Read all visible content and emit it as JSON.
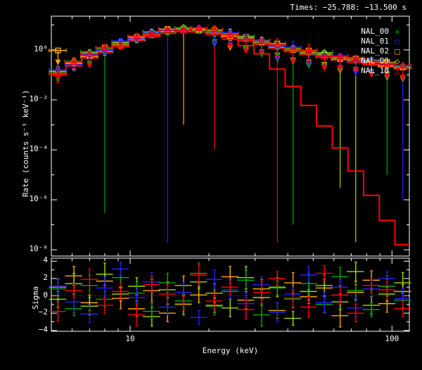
{
  "window": {
    "title": "Times: −25.788: −13.500 s"
  },
  "colors": {
    "background": "#000000",
    "frame": "#ffffff",
    "text": "#ffffff",
    "model": "#ff0000",
    "zero_line": "#ff0000",
    "nal00": "#00aa00",
    "nal01": "#2222ff",
    "nal02": "#ffaa00",
    "nal09": "#9fdd00",
    "nal10": "#ff0000"
  },
  "legend": {
    "items": [
      {
        "label": "NAL_00",
        "glyph": "+",
        "symbol": "plus",
        "color": "#00aa00"
      },
      {
        "label": "NAL_01",
        "glyph": "○",
        "symbol": "circle",
        "color": "#2222ff"
      },
      {
        "label": "NAL_02",
        "glyph": "□",
        "symbol": "square",
        "color": "#ffaa00"
      },
      {
        "label": "NAL_09",
        "glyph": "◇",
        "symbol": "diamond",
        "color": "#9fdd00"
      },
      {
        "label": "NAL_10",
        "glyph": "△",
        "symbol": "triangle",
        "color": "#ff0000"
      }
    ]
  },
  "chart_data": [
    {
      "type": "scatter",
      "subtype": "count-spectrum-with-model-histograms",
      "title": "Times: −25.788: −13.500 s",
      "xlabel": "Energy (keV)",
      "ylabel": "Rate (counts s⁻¹ keV⁻¹)",
      "xscale": "log",
      "yscale": "log",
      "xlim": [
        5.0,
        116.5
      ],
      "ylim": [
        5.6e-09,
        22.4
      ],
      "x_major_ticks": [
        {
          "value": 10,
          "label": "10"
        },
        {
          "value": 100,
          "label": "100"
        }
      ],
      "x_minor_ticks": [
        6,
        7,
        8,
        9,
        20,
        30,
        40,
        50,
        60,
        70,
        80,
        90
      ],
      "y_major_tick_exps": [
        0,
        -2,
        -4,
        -6,
        -8
      ],
      "y_major_tick_labels": [
        "10⁰",
        "10⁻²",
        "10⁻⁴",
        "10⁻⁶",
        "10⁻⁸"
      ],
      "y_minor_tick_exps": [
        1,
        -1,
        -3,
        -5,
        -7
      ],
      "x": [
        5.3,
        6.1,
        7.0,
        8.0,
        9.2,
        10.6,
        12.1,
        13.9,
        16.0,
        18.3,
        21.0,
        24.1,
        27.7,
        31.8,
        36.5,
        41.9,
        48.1,
        55.2,
        63.4,
        72.7,
        83.5,
        95.8,
        110.0
      ],
      "xerr": [
        0.4,
        0.46,
        0.53,
        0.6,
        0.69,
        0.8,
        0.91,
        1.04,
        1.2,
        1.37,
        1.58,
        1.81,
        2.08,
        2.39,
        2.74,
        3.14,
        3.61,
        4.14,
        4.76,
        5.45,
        6.26,
        7.19,
        8.25
      ],
      "model_histograms": [
        {
          "name": "model-band",
          "color": "#ff0000",
          "values": [
            0.13,
            0.3,
            0.62,
            1.05,
            1.85,
            3.0,
            4.4,
            5.9,
            7.0,
            6.8,
            5.7,
            4.2,
            3.0,
            2.1,
            1.5,
            1.1,
            0.82,
            0.64,
            0.51,
            0.41,
            0.33,
            0.27,
            0.22
          ]
        },
        {
          "name": "model-band-low",
          "color": "#ff0000",
          "values": [
            0.1,
            0.23,
            0.48,
            0.82,
            1.44,
            2.34,
            3.43,
            4.6,
            5.46,
            5.3,
            4.45,
            3.28,
            2.34,
            1.64,
            1.17,
            0.86,
            0.64,
            0.5,
            0.4,
            0.32,
            0.26,
            0.21,
            0.17
          ]
        },
        {
          "name": "model-cutoff",
          "color": "#ff0000",
          "values": [
            0.1,
            0.23,
            0.48,
            0.8,
            1.4,
            2.3,
            3.4,
            4.6,
            5.4,
            5.2,
            4.2,
            2.7,
            1.5,
            0.7,
            0.17,
            0.035,
            0.006,
            0.0009,
            0.00012,
            1.4e-05,
            1.5e-06,
            1.5e-07,
            1.6e-08
          ]
        }
      ],
      "series": [
        {
          "name": "NAL_02",
          "color": "#ffaa00",
          "symbol": "square",
          "rate": [
            0.95,
            0.3,
            0.55,
            1.24,
            1.57,
            3.2,
            4.0,
            6.8,
            6.8,
            6.0,
            5.9,
            3.6,
            3.3,
            2.0,
            1.8,
            0.99,
            0.94,
            0.64,
            0.43,
            0.45,
            0.31,
            0.32,
            0.2
          ],
          "err": [
            null,
            0.13,
            0.2,
            0.37,
            0.45,
            0.85,
            0.95,
            1.4,
            1.4,
            1.3,
            2.4,
            null,
            null,
            1.2,
            null,
            null,
            null,
            null,
            null,
            null,
            null,
            null,
            null
          ],
          "limit": [
            1,
            0,
            0,
            0,
            0,
            0,
            0,
            0,
            0,
            0,
            0,
            1,
            1,
            0,
            1,
            1,
            1,
            1,
            1,
            1,
            1,
            1,
            1
          ]
        },
        {
          "name": "NAL_09",
          "color": "#9fdd00",
          "symbol": "diamond",
          "rate": [
            0.14,
            0.28,
            0.76,
            0.89,
            2.0,
            2.7,
            5.2,
            5.6,
            7.7,
            6.8,
            5.1,
            4.6,
            2.85,
            2.4,
            1.3,
            1.15,
            0.78,
            0.77,
            0.51,
            0.37,
            0.38,
            0.23,
            0.22
          ],
          "err": [
            0.07,
            0.12,
            0.25,
            0.28,
            0.55,
            0.75,
            1.15,
            1.25,
            1.55,
            1.45,
            null,
            2.2,
            null,
            null,
            null,
            null,
            null,
            null,
            null,
            null,
            null,
            null,
            null
          ],
          "limit": [
            0,
            0,
            0,
            0,
            0,
            0,
            0,
            0,
            0,
            0,
            1,
            0,
            1,
            1,
            1,
            1,
            1,
            1,
            1,
            1,
            1,
            1,
            1
          ]
        },
        {
          "name": "NAL_00",
          "color": "#00aa00",
          "symbol": "plus",
          "rate": [
            0.12,
            0.35,
            0.85,
            1.16,
            1.76,
            3.6,
            4.4,
            5.2,
            7.5,
            6.3,
            6.3,
            4.0,
            3.6,
            1.9,
            1.7,
            1.1,
            0.7,
            0.7,
            0.48,
            0.49,
            0.3,
            0.28,
            0.22
          ],
          "err": [
            0.06,
            0.14,
            null,
            0.35,
            0.5,
            0.9,
            1.0,
            1.2,
            1.5,
            1.4,
            null,
            2.0,
            null,
            null,
            null,
            null,
            null,
            null,
            null,
            null,
            null,
            null,
            null
          ],
          "limit": [
            0,
            0,
            1,
            0,
            0,
            0,
            0,
            0,
            0,
            0,
            1,
            0,
            1,
            1,
            1,
            1,
            1,
            1,
            1,
            1,
            1,
            1,
            1
          ]
        },
        {
          "name": "NAL_01",
          "color": "#2222ff",
          "symbol": "circle",
          "rate": [
            0.16,
            0.26,
            0.65,
            0.95,
            2.3,
            2.9,
            4.8,
            6.0,
            6.3,
            7.6,
            5.4,
            4.8,
            2.7,
            2.3,
            1.4,
            1.3,
            0.86,
            0.58,
            0.59,
            0.35,
            0.36,
            0.26,
            0.23
          ],
          "err": [
            0.08,
            0.12,
            0.22,
            0.3,
            0.6,
            0.8,
            1.1,
            1.3,
            1.3,
            1.6,
            null,
            null,
            1.5,
            null,
            null,
            0.9,
            null,
            null,
            null,
            null,
            null,
            null,
            null
          ],
          "limit": [
            0,
            0,
            0,
            0,
            0,
            0,
            0,
            0,
            0,
            0,
            1,
            1,
            0,
            1,
            1,
            0,
            1,
            1,
            1,
            1,
            1,
            1,
            1
          ]
        },
        {
          "name": "NAL_10",
          "color": "#ff0000",
          "symbol": "triangle",
          "rate": [
            0.11,
            0.32,
            0.7,
            1.26,
            1.48,
            3.45,
            4.2,
            6.2,
            5.95,
            7.5,
            6.6,
            4.2,
            2.64,
            2.2,
            1.65,
            1.05,
            0.98,
            0.54,
            0.54,
            0.47,
            0.3,
            0.27,
            0.24
          ],
          "err": [
            0.06,
            0.14,
            null,
            0.38,
            0.42,
            0.9,
            1.0,
            1.35,
            1.3,
            1.6,
            2.6,
            null,
            null,
            null,
            1.1,
            null,
            0.7,
            null,
            null,
            null,
            null,
            null,
            null
          ],
          "limit": [
            0,
            0,
            1,
            0,
            0,
            0,
            0,
            0,
            0,
            0,
            0,
            1,
            1,
            1,
            0,
            1,
            0,
            1,
            1,
            1,
            1,
            1,
            1
          ]
        }
      ],
      "deep_error_bars": [
        {
          "x": 8.0,
          "top": 1.16,
          "bottom": 3e-07,
          "color": "#00aa00"
        },
        {
          "x": 13.9,
          "top": 6.0,
          "bottom": 2e-08,
          "color": "#2222ff"
        },
        {
          "x": 21.0,
          "top": 6.6,
          "bottom": 0.0001,
          "color": "#ff0000"
        },
        {
          "x": 16.0,
          "top": 6.8,
          "bottom": 0.001,
          "color": "#ffaa00"
        },
        {
          "x": 36.5,
          "top": 1.7,
          "bottom": 2e-08,
          "color": "#ff0000"
        },
        {
          "x": 41.9,
          "top": 1.05,
          "bottom": 1e-07,
          "color": "#00aa00"
        },
        {
          "x": 63.4,
          "top": 0.52,
          "bottom": 3e-06,
          "color": "#9fdd00"
        },
        {
          "x": 72.7,
          "top": 0.41,
          "bottom": 2e-08,
          "color": "#9fdd00"
        },
        {
          "x": 95.8,
          "top": 0.29,
          "bottom": 1e-05,
          "color": "#00aa00"
        },
        {
          "x": 110.0,
          "top": 0.24,
          "bottom": 1e-06,
          "color": "#2222ff"
        }
      ]
    },
    {
      "type": "scatter",
      "subtype": "fit-residuals",
      "ylabel": "Sigma",
      "xscale": "log",
      "xlim": [
        5.0,
        116.5
      ],
      "ylim": [
        -4.1,
        4.35
      ],
      "y_major_ticks": [
        {
          "value": 4,
          "label": "4"
        },
        {
          "value": 2,
          "label": "2"
        },
        {
          "value": 0,
          "label": "0"
        },
        {
          "value": -2,
          "label": "−2"
        },
        {
          "value": -4,
          "label": "−4"
        }
      ],
      "y_minor_ticks": [
        3,
        1,
        -1,
        -3
      ],
      "zero_line": {
        "y": 0,
        "style": "dotted",
        "color": "#ff0000"
      },
      "x": [
        5.3,
        6.1,
        7.0,
        8.0,
        9.2,
        10.6,
        12.1,
        13.9,
        16.0,
        18.3,
        21.0,
        24.1,
        27.7,
        31.8,
        36.5,
        41.9,
        48.1,
        55.2,
        63.4,
        72.7,
        83.5,
        95.8,
        110.0
      ],
      "xerr": [
        0.4,
        0.46,
        0.53,
        0.6,
        0.69,
        0.8,
        0.91,
        1.04,
        1.2,
        1.37,
        1.58,
        1.81,
        2.08,
        2.39,
        2.74,
        3.14,
        3.61,
        4.14,
        4.76,
        5.45,
        6.26,
        7.19,
        8.25
      ],
      "series": [
        {
          "name": "NAL_02",
          "color": "#ffaa00",
          "sigma": [
            1.0,
            2.3,
            -0.8,
            1.7,
            -0.3,
            -1.5,
            0.6,
            -2.0,
            1.2,
            0.1,
            -1.1,
            2.2,
            -0.5,
            0.8,
            -1.7,
            1.5,
            -0.1,
            0.9,
            -2.3,
            0.4,
            1.8,
            -0.9,
            0.5
          ],
          "err": [
            1.0,
            1.1,
            0.9,
            0.8,
            1.2,
            0.9,
            1.3,
            1.0,
            1.1,
            0.9,
            0.8,
            1.2,
            1.0,
            1.1,
            0.9,
            1.2,
            0.8,
            1.0,
            1.3,
            0.9,
            1.1,
            1.0,
            0.8
          ]
        },
        {
          "name": "NAL_09",
          "color": "#9fdd00",
          "sigma": [
            -0.4,
            1.4,
            -1.2,
            2.5,
            0.2,
            1.1,
            -2.4,
            0.7,
            -1.0,
            1.6,
            0.3,
            -1.4,
            2.1,
            -0.2,
            1.0,
            -2.6,
            0.5,
            1.2,
            -0.7,
            2.8,
            -1.1,
            0.2,
            1.5
          ],
          "err": [
            0.9,
            1.2,
            1.0,
            1.3,
            0.8,
            1.0,
            1.1,
            0.9,
            1.2,
            0.8,
            1.1,
            1.0,
            1.3,
            0.9,
            1.1,
            0.8,
            1.0,
            1.2,
            0.9,
            1.1,
            1.0,
            0.8,
            1.2
          ]
        },
        {
          "name": "NAL_00",
          "color": "#00aa00",
          "sigma": [
            0.8,
            -1.5,
            1.2,
            -0.4,
            2.1,
            0.3,
            -1.8,
            1.5,
            -0.6,
            2.6,
            -1.2,
            0.5,
            1.8,
            -2.2,
            0.9,
            -0.3,
            1.4,
            -1.0,
            2.2,
            0.6,
            -1.6,
            1.1,
            -0.5
          ],
          "err": [
            1.1,
            0.8,
            1.2,
            0.9,
            1.0,
            1.3,
            0.9,
            1.1,
            0.8,
            1.2,
            1.0,
            0.9,
            1.1,
            1.3,
            0.8,
            1.0,
            1.2,
            0.9,
            1.1,
            1.0,
            0.8,
            1.2,
            0.9
          ]
        },
        {
          "name": "NAL_01",
          "color": "#2222ff",
          "sigma": [
            1.1,
            -0.7,
            -2.1,
            0.9,
            3.1,
            -0.2,
            1.6,
            -1.3,
            0.4,
            -2.5,
            1.9,
            0.7,
            -0.9,
            1.3,
            -1.9,
            0.2,
            2.4,
            -0.8,
            1.0,
            -1.4,
            0.8,
            2.0,
            -0.3
          ],
          "err": [
            0.9,
            1.2,
            1.0,
            1.3,
            0.8,
            1.0,
            1.1,
            0.9,
            1.2,
            0.8,
            1.1,
            1.0,
            1.3,
            0.9,
            1.1,
            0.8,
            1.0,
            1.2,
            0.9,
            1.1,
            1.0,
            0.8,
            1.2
          ]
        },
        {
          "name": "NAL_10",
          "color": "#ff0000",
          "sigma": [
            -1.8,
            0.6,
            1.9,
            -1.1,
            0.5,
            -2.2,
            1.3,
            0.2,
            -0.9,
            2.4,
            -0.6,
            1.0,
            -1.6,
            0.4,
            2.0,
            -0.4,
            -1.3,
            2.6,
            0.1,
            -2.0,
            1.2,
            0.7,
            -1.5
          ],
          "err": [
            1.1,
            0.8,
            1.2,
            0.9,
            1.0,
            1.3,
            0.9,
            1.1,
            0.8,
            1.2,
            1.0,
            0.9,
            1.1,
            1.3,
            0.8,
            1.0,
            1.2,
            0.9,
            1.1,
            1.0,
            0.8,
            1.2,
            0.9
          ]
        }
      ]
    }
  ],
  "axis_text": {
    "xlabel": "Energy (keV)",
    "rate_label": "Rate (counts s⁻¹ keV⁻¹)",
    "sigma_label": "Sigma"
  }
}
